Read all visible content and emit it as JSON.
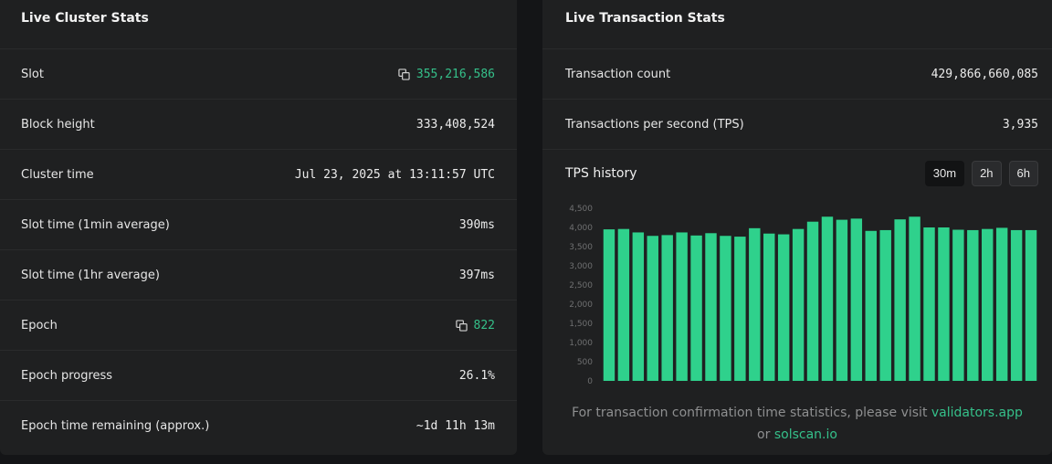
{
  "cluster": {
    "title": "Live Cluster Stats",
    "rows": [
      {
        "label": "Slot",
        "value": "355,216,586"
      },
      {
        "label": "Block height",
        "value": "333,408,524"
      },
      {
        "label": "Cluster time",
        "value": "Jul 23, 2025 at 13:11:57 UTC"
      },
      {
        "label": "Slot time (1min average)",
        "value": "390ms"
      },
      {
        "label": "Slot time (1hr average)",
        "value": "397ms"
      },
      {
        "label": "Epoch",
        "value": "822"
      },
      {
        "label": "Epoch progress",
        "value": "26.1%"
      },
      {
        "label": "Epoch time remaining (approx.)",
        "value": "~1d 11h 13m"
      }
    ]
  },
  "transactions": {
    "title": "Live Transaction Stats",
    "rows": [
      {
        "label": "Transaction count",
        "value": "429,866,660,085"
      },
      {
        "label": "Transactions per second (TPS)",
        "value": "3,935"
      }
    ],
    "history_title": "TPS history",
    "ranges": [
      "30m",
      "2h",
      "6h"
    ],
    "active_range": "30m",
    "footer_prefix": "For transaction confirmation time statistics, please visit",
    "footer_link1": "validators.app",
    "footer_or": "or",
    "footer_link2": "solscan.io"
  },
  "colors": {
    "accent": "#35c08a",
    "bar": "#2fd18c",
    "card": "#1f2021",
    "background": "#141517"
  },
  "icons": {
    "copy": "copy-icon"
  },
  "chart_data": {
    "type": "bar",
    "title": "TPS history",
    "ylim": [
      0,
      4500
    ],
    "yticks": [
      "0",
      "500",
      "1,000",
      "1,500",
      "2,000",
      "2,500",
      "3,000",
      "3,500",
      "4,000",
      "4,500"
    ],
    "values": [
      3950,
      3960,
      3870,
      3780,
      3800,
      3870,
      3790,
      3850,
      3780,
      3760,
      3980,
      3840,
      3820,
      3960,
      4150,
      4280,
      4200,
      4230,
      3910,
      3930,
      4210,
      4280,
      4000,
      4000,
      3940,
      3930,
      3960,
      3990,
      3930,
      3930
    ],
    "grid": false
  }
}
